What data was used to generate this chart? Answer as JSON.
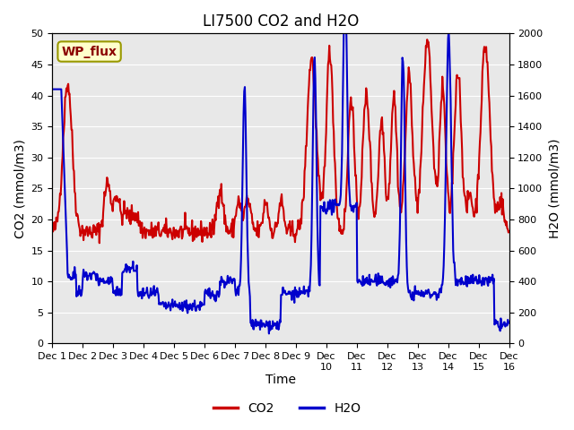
{
  "title": "LI7500 CO2 and H2O",
  "xlabel": "Time",
  "ylabel_left": "CO2 (mmol/m3)",
  "ylabel_right": "H2O (mmol/m3)",
  "co2_color": "#cc0000",
  "h2o_color": "#0000cc",
  "co2_linewidth": 1.5,
  "h2o_linewidth": 1.5,
  "ylim_left": [
    0,
    50
  ],
  "ylim_right": [
    0,
    2000
  ],
  "yticks_left": [
    0,
    5,
    10,
    15,
    20,
    25,
    30,
    35,
    40,
    45,
    50
  ],
  "yticks_right": [
    0,
    200,
    400,
    600,
    800,
    1000,
    1200,
    1400,
    1600,
    1800,
    2000
  ],
  "n_days": 15,
  "pts_per_day": 48,
  "wp_flux_label": "WP_flux",
  "wp_flux_color": "#8b0000",
  "wp_flux_bg": "#ffffcc",
  "bg_color": "#e8e8e8",
  "legend_co2": "CO2",
  "legend_h2o": "H2O",
  "scale_factor": 40,
  "title_fontsize": 12,
  "axis_label_fontsize": 10,
  "tick_fontsize": 8
}
